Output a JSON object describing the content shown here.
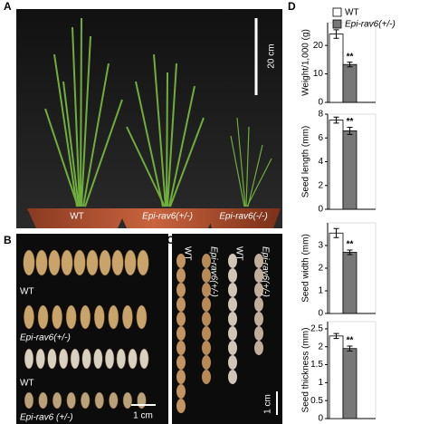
{
  "panels": {
    "a": {
      "label": "A",
      "scale": "20 cm",
      "pots": [
        "WT",
        "Epi-rav6(+/-)",
        "Epi-rav6(-/-)"
      ]
    },
    "b": {
      "label": "B",
      "rows": [
        "WT",
        "Epi-rav6(+/-)",
        "WT",
        "Epi-rav6 (+/-)"
      ],
      "scale": "1 cm"
    },
    "c": {
      "label": "C",
      "columns": [
        "WT",
        "Epi-rav6(+/-)",
        "WT",
        "Epi-rav6(+/-)"
      ],
      "scale": "1 cm"
    },
    "d": {
      "label": "D"
    }
  },
  "chart_data": [
    {
      "type": "bar",
      "y_label": "Weight/1,000 (g)",
      "ylim": [
        0,
        28
      ],
      "yticks": [
        0,
        10,
        20
      ],
      "annotation": "**",
      "series": [
        {
          "name": "WT",
          "color": "#ffffff",
          "values": [
            24
          ],
          "errors": [
            1.5
          ]
        },
        {
          "name": "Epi-rav6(+/-)",
          "color": "#777777",
          "values": [
            13.3
          ],
          "errors": [
            0.8
          ]
        }
      ]
    },
    {
      "type": "bar",
      "y_label": "Seed length (mm)",
      "ylim": [
        0,
        8
      ],
      "yticks": [
        0,
        2,
        4,
        6,
        8
      ],
      "annotation": "**",
      "series": [
        {
          "color": "#ffffff",
          "values": [
            7.5
          ],
          "errors": [
            0.25
          ]
        },
        {
          "color": "#777777",
          "values": [
            6.6
          ],
          "errors": [
            0.3
          ]
        }
      ]
    },
    {
      "type": "bar",
      "y_label": "Seed width (mm)",
      "ylim": [
        0,
        4
      ],
      "yticks": [
        0,
        1,
        2,
        3
      ],
      "annotation": "**",
      "series": [
        {
          "color": "#ffffff",
          "values": [
            3.55
          ],
          "errors": [
            0.2
          ]
        },
        {
          "color": "#777777",
          "values": [
            2.7
          ],
          "errors": [
            0.1
          ]
        }
      ]
    },
    {
      "type": "bar",
      "y_label": "Seed thickness (mm)",
      "ylim": [
        0,
        2.7
      ],
      "yticks": [
        0,
        0.5,
        1,
        1.5,
        2,
        2.5
      ],
      "annotation": "**",
      "series": [
        {
          "color": "#ffffff",
          "values": [
            2.3
          ],
          "errors": [
            0.07
          ]
        },
        {
          "color": "#777777",
          "values": [
            1.95
          ],
          "errors": [
            0.07
          ]
        }
      ]
    }
  ]
}
